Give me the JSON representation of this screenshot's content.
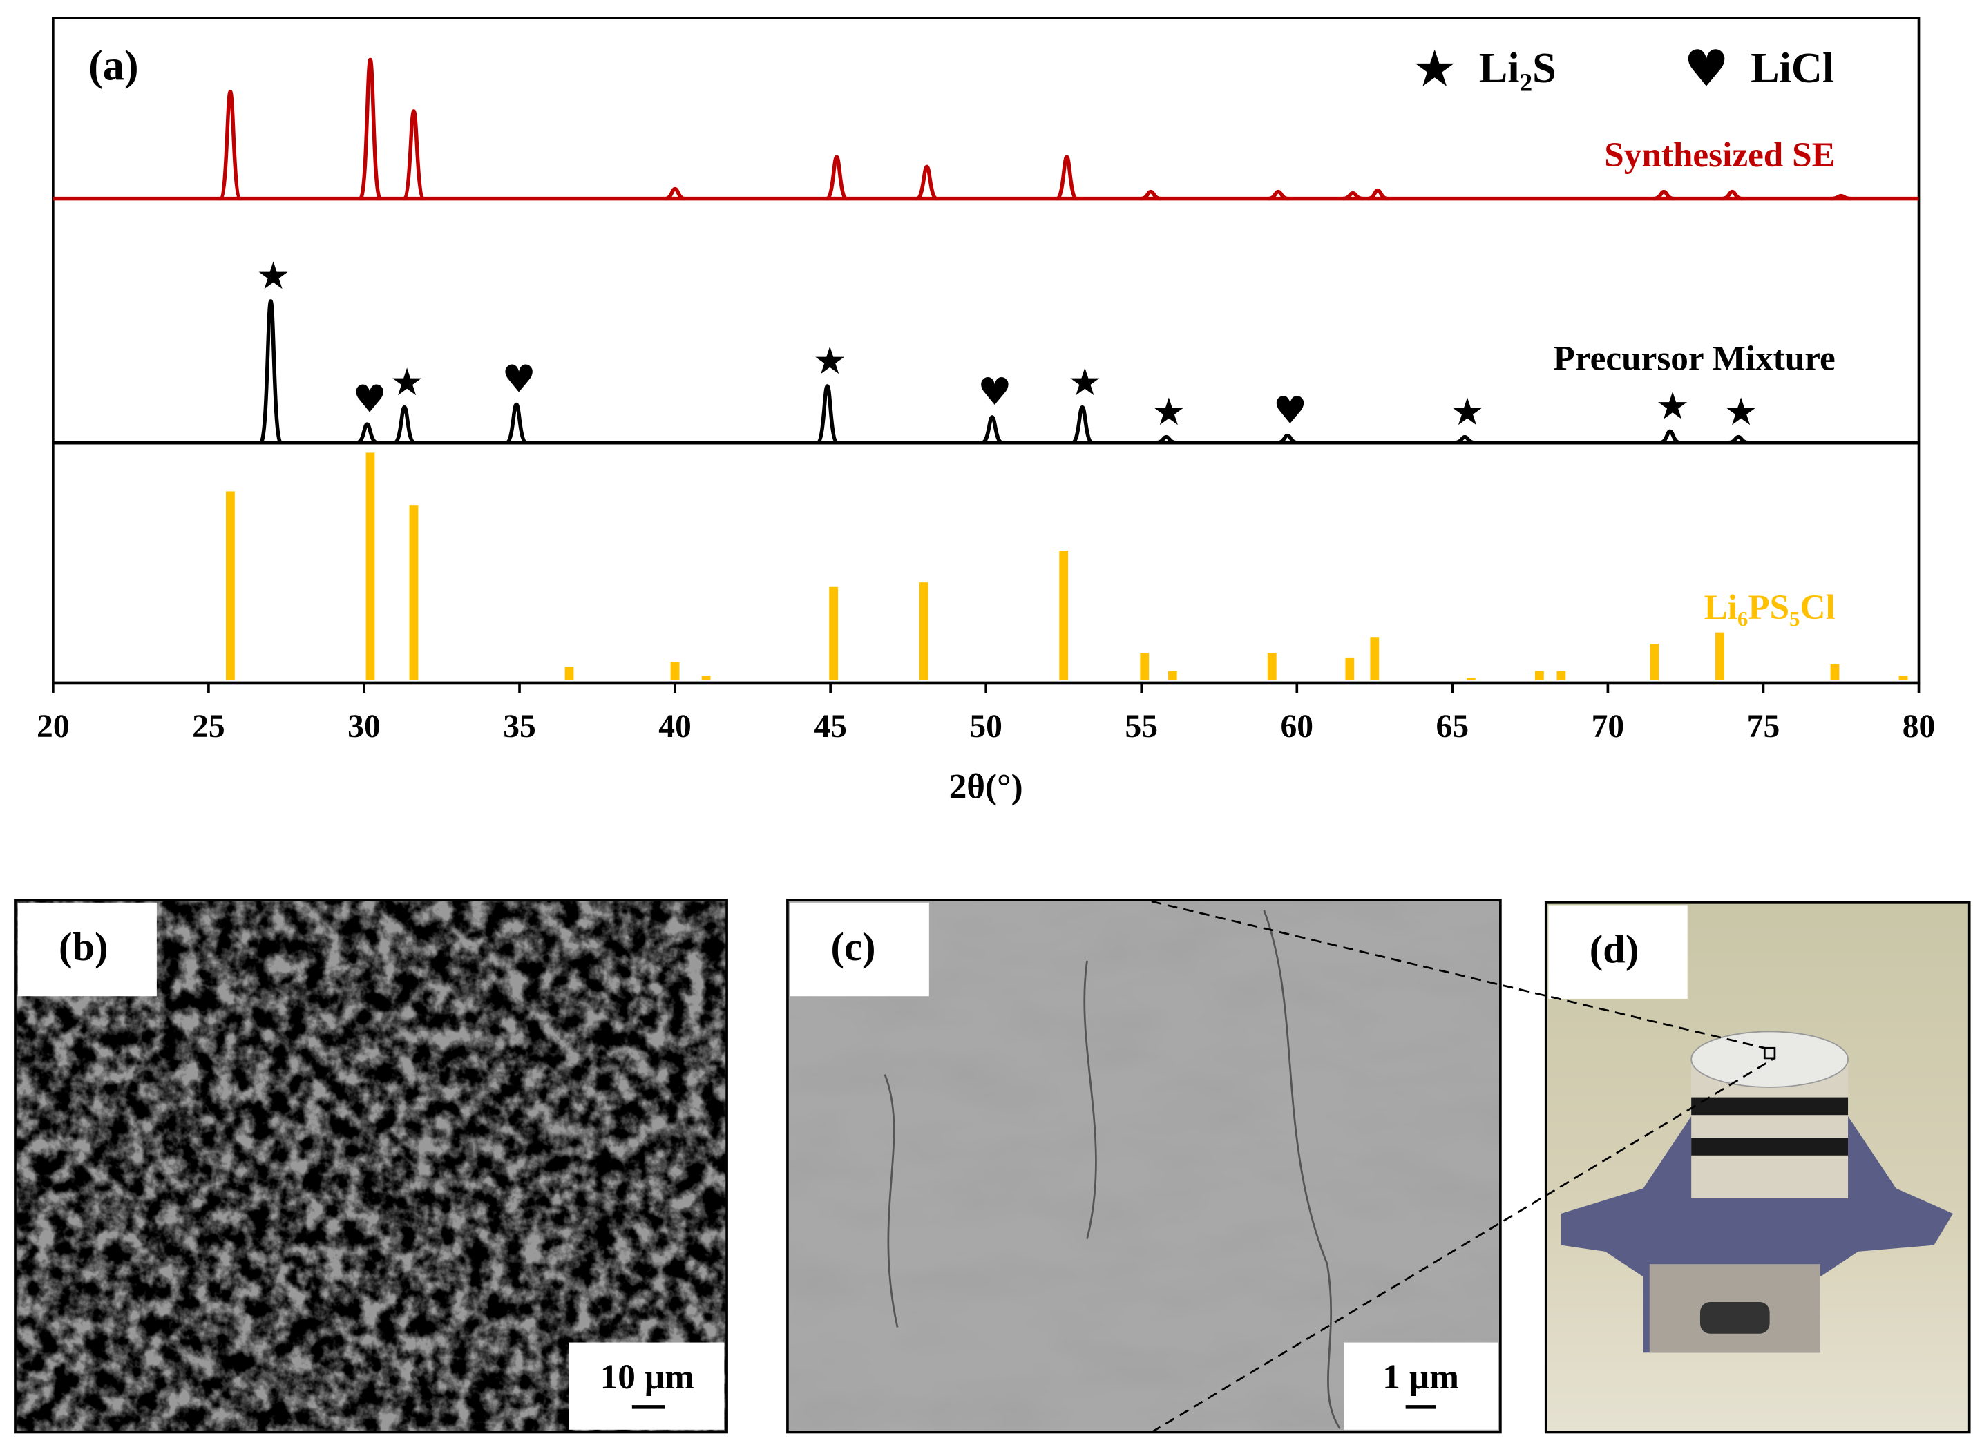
{
  "chart_data": {
    "type": "line",
    "panel_label": "(a)",
    "x_label": "2θ(°)",
    "xlim": [
      20,
      80
    ],
    "xticks": [
      20,
      25,
      30,
      35,
      40,
      45,
      50,
      55,
      60,
      65,
      70,
      75,
      80
    ],
    "legend": [
      {
        "symbol": "★",
        "name": "Li₂S"
      },
      {
        "symbol": "♥",
        "name": "LiCl"
      }
    ],
    "series": [
      {
        "name": "Synthesized SE",
        "color": "#c00000",
        "x": [
          25.7,
          30.2,
          31.6,
          40.0,
          45.2,
          48.1,
          52.6,
          55.3,
          59.4,
          61.8,
          62.6,
          71.8,
          74.0,
          77.5
        ],
        "values": [
          77,
          100,
          63,
          7,
          30,
          23,
          30,
          5,
          5,
          4,
          6,
          5,
          5,
          2
        ]
      },
      {
        "name": "Precursor Mixture",
        "color": "#000000",
        "x": [
          27.0,
          30.1,
          31.3,
          34.9,
          44.9,
          50.2,
          53.1,
          55.8,
          59.7,
          65.4,
          72.0,
          74.2
        ],
        "values": [
          100,
          13,
          25,
          27,
          40,
          18,
          25,
          4,
          5,
          4,
          8,
          4
        ],
        "markers": [
          "★",
          "♥",
          "★",
          "♥",
          "★",
          "♥",
          "★",
          "★",
          "♥",
          "★",
          "★",
          "★"
        ]
      },
      {
        "name": "Li₆PS₅Cl",
        "color": "#ffc000",
        "style": "bar",
        "x": [
          25.7,
          30.2,
          31.6,
          36.6,
          40.0,
          41.0,
          45.1,
          48.0,
          52.5,
          55.1,
          56.0,
          59.2,
          61.7,
          62.5,
          65.6,
          67.8,
          68.5,
          71.5,
          73.6,
          77.3,
          79.5
        ],
        "values": [
          83,
          100,
          77,
          6,
          8,
          2,
          41,
          43,
          57,
          12,
          4,
          12,
          10,
          19,
          1,
          4,
          4,
          16,
          21,
          7,
          2
        ]
      }
    ]
  },
  "panels": [
    {
      "label": "(b)",
      "scale_bar": "10 µm"
    },
    {
      "label": "(c)",
      "scale_bar": "1 µm"
    },
    {
      "label": "(d)"
    }
  ]
}
